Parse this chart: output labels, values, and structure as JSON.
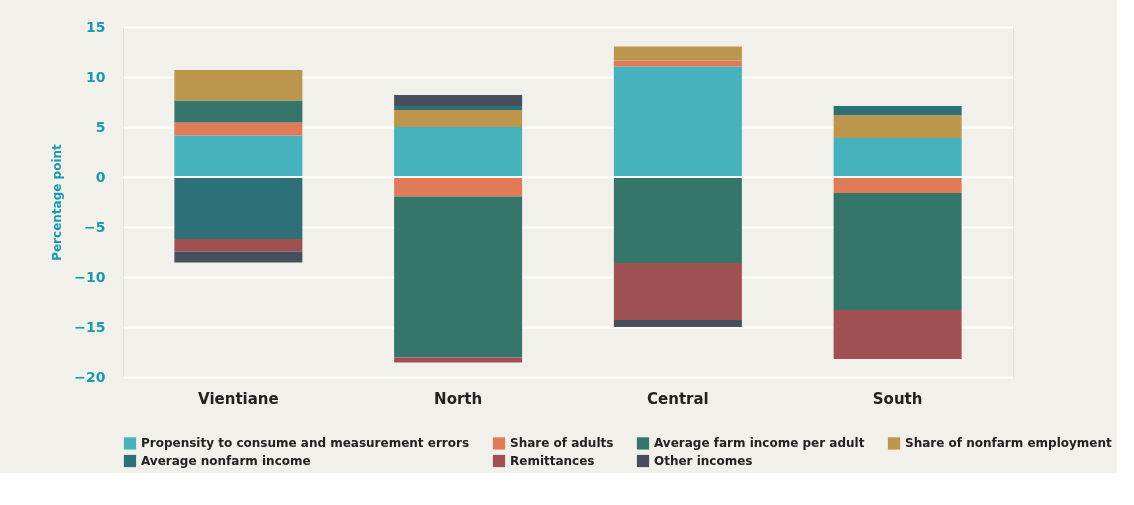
{
  "chart_data": {
    "type": "bar",
    "stacked": true,
    "ylabel": "Percentage point",
    "categories": [
      "Vientiane",
      "North",
      "Central",
      "South"
    ],
    "series": [
      {
        "name": "Propensity to consume and measurement errors",
        "color": "#45b2bd",
        "values": [
          4.15,
          5.0,
          11.05,
          3.9
        ]
      },
      {
        "name": "Share of adults",
        "color": "#df7b57",
        "values": [
          1.3,
          -1.95,
          0.6,
          -1.6
        ]
      },
      {
        "name": "Average farm income per adult",
        "color": "#36756a",
        "values": [
          2.2,
          -16.1,
          -8.6,
          -11.7
        ]
      },
      {
        "name": "Share of nonfarm employment",
        "color": "#bb964c",
        "values": [
          3.05,
          1.7,
          1.4,
          2.3
        ]
      },
      {
        "name": "Average nonfarm income",
        "color": "#2e7078",
        "values": [
          -6.2,
          0.4,
          null,
          0.9
        ]
      },
      {
        "name": "Remittances",
        "color": "#9f5152",
        "values": [
          -1.25,
          -0.5,
          -5.7,
          -4.9
        ]
      },
      {
        "name": "Other incomes",
        "color": "#474f5e",
        "values": [
          -1.1,
          1.1,
          -0.7,
          null
        ]
      }
    ],
    "ylim": [
      -20,
      15
    ],
    "yticks": [
      -20,
      -15,
      -10,
      -5,
      0,
      5,
      10,
      15
    ],
    "grid": "y",
    "legend": "bottom",
    "ref_lines": [
      {
        "axis": "y",
        "value": 0,
        "color": "#ffffff"
      }
    ]
  }
}
